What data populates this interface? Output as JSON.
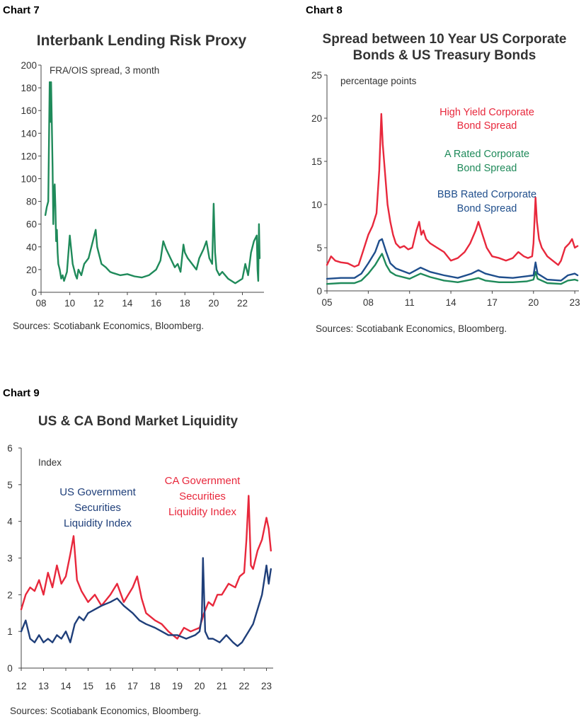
{
  "chart_data": [
    {
      "id": "chart7",
      "number": "Chart 7",
      "type": "line",
      "title": "Interbank Lending Risk Proxy",
      "annotation": "FRA/OIS spread, 3 month",
      "source": "Sources: Scotiabank Economics, Bloomberg.",
      "xlim": [
        8,
        23.5
      ],
      "xticks": [
        8,
        10,
        12,
        14,
        16,
        18,
        20,
        22
      ],
      "xtick_labels": [
        "08",
        "10",
        "12",
        "14",
        "16",
        "18",
        "20",
        "22"
      ],
      "ylim": [
        0,
        200
      ],
      "yticks": [
        0,
        20,
        40,
        60,
        80,
        100,
        120,
        140,
        160,
        180,
        200
      ],
      "series": [
        {
          "name": "FRA/OIS spread, 3 month",
          "color": "#1f8a5a",
          "x": [
            8.3,
            8.4,
            8.5,
            8.6,
            8.65,
            8.7,
            8.8,
            8.85,
            8.9,
            8.95,
            9.0,
            9.05,
            9.1,
            9.15,
            9.2,
            9.3,
            9.4,
            9.5,
            9.6,
            9.8,
            10.0,
            10.2,
            10.4,
            10.5,
            10.6,
            10.8,
            11.0,
            11.3,
            11.6,
            11.8,
            11.9,
            12.0,
            12.2,
            12.5,
            12.8,
            13.0,
            13.5,
            14.0,
            14.5,
            15.0,
            15.5,
            16.0,
            16.3,
            16.5,
            16.7,
            17.0,
            17.3,
            17.5,
            17.7,
            17.9,
            18.0,
            18.2,
            18.5,
            18.8,
            19.0,
            19.3,
            19.5,
            19.7,
            19.9,
            20.0,
            20.1,
            20.2,
            20.4,
            20.6,
            21.0,
            21.5,
            22.0,
            22.2,
            22.4,
            22.6,
            22.8,
            23.0,
            23.05,
            23.1,
            23.15,
            23.2
          ],
          "values": [
            68,
            75,
            80,
            185,
            150,
            185,
            110,
            60,
            90,
            95,
            75,
            45,
            55,
            35,
            25,
            20,
            12,
            15,
            10,
            18,
            50,
            25,
            15,
            12,
            20,
            15,
            25,
            30,
            45,
            55,
            40,
            35,
            25,
            22,
            18,
            17,
            15,
            16,
            14,
            13,
            15,
            20,
            28,
            45,
            38,
            30,
            22,
            25,
            18,
            42,
            35,
            30,
            25,
            20,
            30,
            38,
            45,
            30,
            25,
            78,
            35,
            20,
            15,
            18,
            12,
            8,
            12,
            25,
            15,
            35,
            45,
            50,
            20,
            10,
            60,
            30
          ]
        }
      ]
    },
    {
      "id": "chart8",
      "number": "Chart 8",
      "type": "line",
      "title": "Spread between 10 Year US Corporate Bonds & US Treasury Bonds",
      "title_lines": [
        "Spread between 10 Year US Corporate",
        "Bonds & US Treasury Bonds"
      ],
      "ylabel": "percentage points",
      "source": "Sources: Scotiabank Economics, Bloomberg.",
      "xlim": [
        5,
        23.3
      ],
      "xticks": [
        5,
        8,
        11,
        14,
        17,
        20,
        23
      ],
      "xtick_labels": [
        "05",
        "08",
        "11",
        "14",
        "17",
        "20",
        "23"
      ],
      "ylim": [
        0,
        25
      ],
      "yticks": [
        0,
        5,
        10,
        15,
        20,
        25
      ],
      "series": [
        {
          "name": "High Yield Corporate Bond Spread",
          "label_lines": [
            "High Yield Corporate",
            "Bond Spread"
          ],
          "color": "#e8283c",
          "x": [
            5.0,
            5.3,
            5.6,
            6.0,
            6.5,
            7.0,
            7.3,
            7.6,
            7.8,
            8.0,
            8.3,
            8.6,
            8.8,
            8.95,
            9.05,
            9.2,
            9.4,
            9.6,
            9.8,
            10.0,
            10.3,
            10.6,
            10.9,
            11.2,
            11.5,
            11.7,
            11.85,
            12.0,
            12.2,
            12.5,
            13.0,
            13.5,
            14.0,
            14.5,
            15.0,
            15.4,
            15.8,
            16.0,
            16.3,
            16.6,
            17.0,
            17.5,
            18.0,
            18.5,
            18.9,
            19.3,
            19.6,
            19.9,
            20.0,
            20.15,
            20.25,
            20.4,
            20.6,
            21.0,
            21.4,
            21.8,
            22.0,
            22.3,
            22.6,
            22.8,
            23.0,
            23.2
          ],
          "values": [
            3.0,
            4.0,
            3.5,
            3.3,
            3.2,
            2.8,
            3.0,
            4.5,
            5.5,
            6.5,
            7.5,
            9.0,
            14.0,
            20.5,
            17.0,
            14.0,
            10.0,
            8.0,
            6.5,
            5.5,
            5.0,
            5.2,
            4.8,
            5.0,
            7.0,
            8.0,
            6.5,
            7.0,
            6.0,
            5.5,
            5.0,
            4.5,
            3.5,
            3.8,
            4.5,
            5.5,
            7.0,
            8.0,
            6.5,
            5.0,
            4.0,
            3.8,
            3.5,
            3.8,
            4.5,
            4.0,
            3.8,
            4.0,
            5.5,
            10.8,
            8.0,
            6.0,
            5.0,
            4.0,
            3.5,
            3.0,
            3.5,
            5.0,
            5.5,
            6.0,
            5.0,
            5.2
          ]
        },
        {
          "name": "A Rated Corporate Bond Spread",
          "label_lines": [
            "A Rated Corporate",
            "Bond Spread"
          ],
          "color": "#1f8a5a",
          "x": [
            5.0,
            6.0,
            7.0,
            7.5,
            8.0,
            8.5,
            8.8,
            9.0,
            9.3,
            9.6,
            10.0,
            11.0,
            11.8,
            12.5,
            13.5,
            14.5,
            15.5,
            16.0,
            16.5,
            17.5,
            18.5,
            19.5,
            20.0,
            20.15,
            20.3,
            21.0,
            22.0,
            22.5,
            23.0,
            23.2
          ],
          "values": [
            0.8,
            0.9,
            0.9,
            1.2,
            2.0,
            3.0,
            3.8,
            4.3,
            3.0,
            2.2,
            1.8,
            1.4,
            2.0,
            1.6,
            1.2,
            1.0,
            1.3,
            1.5,
            1.2,
            1.0,
            1.0,
            1.1,
            1.3,
            2.2,
            1.4,
            0.9,
            0.8,
            1.2,
            1.3,
            1.2
          ]
        },
        {
          "name": "BBB Rated Corporate Bond Spread",
          "label_lines": [
            "BBB Rated Corporate",
            "Bond Spread"
          ],
          "color": "#1f4e8c",
          "x": [
            5.0,
            6.0,
            7.0,
            7.5,
            8.0,
            8.5,
            8.8,
            9.0,
            9.3,
            9.6,
            10.0,
            11.0,
            11.8,
            12.5,
            13.5,
            14.5,
            15.5,
            16.0,
            16.5,
            17.5,
            18.5,
            19.5,
            20.0,
            20.15,
            20.3,
            21.0,
            22.0,
            22.5,
            23.0,
            23.2
          ],
          "values": [
            1.4,
            1.5,
            1.5,
            2.0,
            3.2,
            4.5,
            5.8,
            6.0,
            4.5,
            3.2,
            2.6,
            2.0,
            2.7,
            2.2,
            1.8,
            1.5,
            2.0,
            2.4,
            2.0,
            1.6,
            1.5,
            1.7,
            1.8,
            3.3,
            2.0,
            1.3,
            1.2,
            1.8,
            2.0,
            1.8
          ]
        }
      ]
    },
    {
      "id": "chart9",
      "number": "Chart 9",
      "type": "line",
      "title": "US & CA Bond Market Liquidity",
      "ylabel": "Index",
      "source": "Sources: Scotiabank Economics, Bloomberg.",
      "xlim": [
        12,
        23.3
      ],
      "xticks": [
        12,
        13,
        14,
        15,
        16,
        17,
        18,
        19,
        20,
        21,
        22,
        23
      ],
      "xtick_labels": [
        "12",
        "13",
        "14",
        "15",
        "16",
        "17",
        "18",
        "19",
        "20",
        "21",
        "22",
        "23"
      ],
      "ylim": [
        0,
        6
      ],
      "yticks": [
        0,
        1,
        2,
        3,
        4,
        5,
        6
      ],
      "series": [
        {
          "name": "CA Government Securities Liquidity Index",
          "label_lines": [
            "CA Government",
            "Securities",
            "Liquidity Index"
          ],
          "color": "#e8283c",
          "x": [
            12.0,
            12.2,
            12.4,
            12.6,
            12.8,
            13.0,
            13.2,
            13.4,
            13.6,
            13.8,
            14.0,
            14.2,
            14.35,
            14.5,
            14.7,
            15.0,
            15.3,
            15.6,
            16.0,
            16.3,
            16.6,
            17.0,
            17.2,
            17.4,
            17.6,
            17.8,
            18.0,
            18.3,
            18.6,
            19.0,
            19.3,
            19.6,
            20.0,
            20.2,
            20.4,
            20.6,
            20.8,
            21.0,
            21.3,
            21.6,
            21.8,
            22.0,
            22.1,
            22.2,
            22.3,
            22.4,
            22.6,
            22.8,
            23.0,
            23.1,
            23.2
          ],
          "values": [
            1.6,
            2.0,
            2.2,
            2.1,
            2.4,
            2.0,
            2.6,
            2.2,
            2.8,
            2.3,
            2.5,
            3.1,
            3.6,
            2.4,
            2.1,
            1.8,
            2.0,
            1.7,
            2.0,
            2.3,
            1.8,
            2.2,
            2.5,
            1.9,
            1.5,
            1.4,
            1.3,
            1.2,
            1.0,
            0.8,
            1.1,
            1.0,
            1.1,
            1.5,
            1.8,
            1.7,
            2.0,
            2.0,
            2.3,
            2.2,
            2.5,
            2.6,
            3.5,
            4.7,
            2.8,
            2.7,
            3.2,
            3.5,
            4.1,
            3.8,
            3.2
          ]
        },
        {
          "name": "US Government Securities Liquidity Index",
          "label_lines": [
            "US Government",
            "Securities",
            "Liquidity Index"
          ],
          "color": "#1f3f7a",
          "x": [
            12.0,
            12.2,
            12.4,
            12.6,
            12.8,
            13.0,
            13.2,
            13.4,
            13.6,
            13.8,
            14.0,
            14.2,
            14.4,
            14.6,
            14.8,
            15.0,
            15.3,
            15.6,
            16.0,
            16.3,
            16.6,
            17.0,
            17.3,
            17.6,
            18.0,
            18.3,
            18.6,
            19.0,
            19.4,
            19.8,
            20.0,
            20.1,
            20.15,
            20.25,
            20.4,
            20.6,
            20.9,
            21.2,
            21.5,
            21.7,
            21.9,
            22.0,
            22.2,
            22.4,
            22.6,
            22.8,
            22.9,
            23.0,
            23.1,
            23.2
          ],
          "values": [
            1.0,
            1.3,
            0.8,
            0.7,
            0.9,
            0.7,
            0.8,
            0.7,
            0.9,
            0.8,
            1.0,
            0.7,
            1.2,
            1.4,
            1.3,
            1.5,
            1.6,
            1.7,
            1.8,
            1.9,
            1.7,
            1.5,
            1.3,
            1.2,
            1.1,
            1.0,
            0.9,
            0.9,
            0.8,
            0.9,
            1.0,
            1.4,
            3.0,
            1.0,
            0.8,
            0.8,
            0.7,
            0.9,
            0.7,
            0.6,
            0.7,
            0.8,
            1.0,
            1.2,
            1.6,
            2.0,
            2.4,
            2.8,
            2.3,
            2.7
          ]
        }
      ]
    }
  ]
}
